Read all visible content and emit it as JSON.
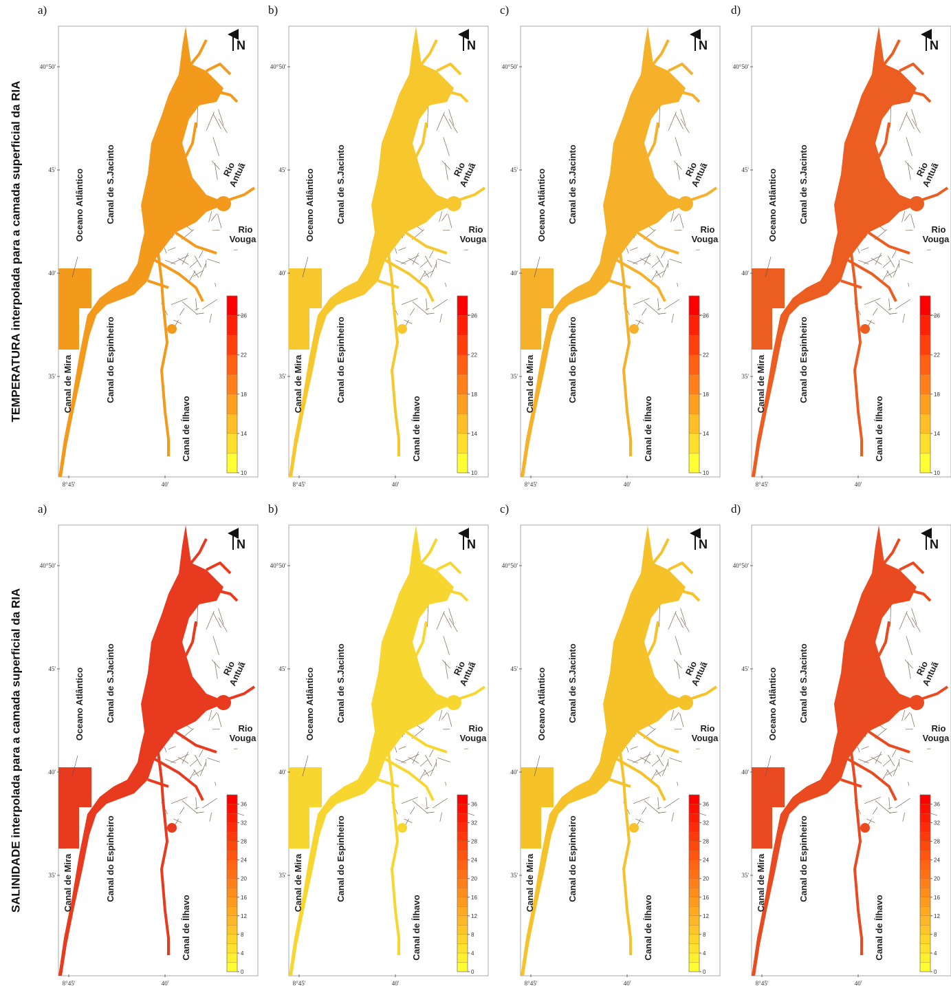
{
  "rows": [
    {
      "title": "TEMPERATURA interpolada para a camada superficial da RIA",
      "colorbar": {
        "ticks": [
          10,
          14,
          18,
          22,
          26
        ],
        "levels": [
          10,
          12,
          14,
          16,
          18,
          20,
          22,
          24,
          26,
          28
        ],
        "colors": [
          "#ffff33",
          "#ff0000"
        ]
      },
      "panels": [
        {
          "label": "a)",
          "color": "#f39a1d"
        },
        {
          "label": "b)",
          "color": "#f7c72e"
        },
        {
          "label": "c)",
          "color": "#f5b12a"
        },
        {
          "label": "d)",
          "color": "#ec5d22"
        }
      ]
    },
    {
      "title": "SALINIDADE interpolada para a camada superficial da RIA",
      "colorbar": {
        "ticks": [
          0,
          4,
          8,
          12,
          16,
          20,
          24,
          28,
          32,
          36
        ],
        "levels": [
          0,
          2,
          4,
          6,
          8,
          10,
          12,
          14,
          16,
          18,
          20,
          22,
          24,
          26,
          28,
          30,
          32,
          34,
          36,
          38
        ],
        "colors": [
          "#ffff33",
          "#ff0000"
        ]
      },
      "panels": [
        {
          "label": "a)",
          "color": "#e83a1e"
        },
        {
          "label": "b)",
          "color": "#f7d630"
        },
        {
          "label": "c)",
          "color": "#f6c22a"
        },
        {
          "label": "d)",
          "color": "#e94a20"
        }
      ]
    }
  ],
  "map": {
    "north": "N",
    "lat_labels": [
      "40°50'",
      "45'",
      "40'",
      "35'"
    ],
    "lon_labels": [
      "8°45'",
      "40'"
    ],
    "places": {
      "ocean": "Oceano Atlântico",
      "sjacinto": "Canal de S.Jacinto",
      "mira": "Canal de Mira",
      "espinheiro": "Canal do Espinheiro",
      "ilhavo": "Canal de Ílhavo",
      "antua": [
        "Rio",
        "Antuã"
      ],
      "vouga": [
        "Rio",
        "Vouga"
      ]
    }
  }
}
